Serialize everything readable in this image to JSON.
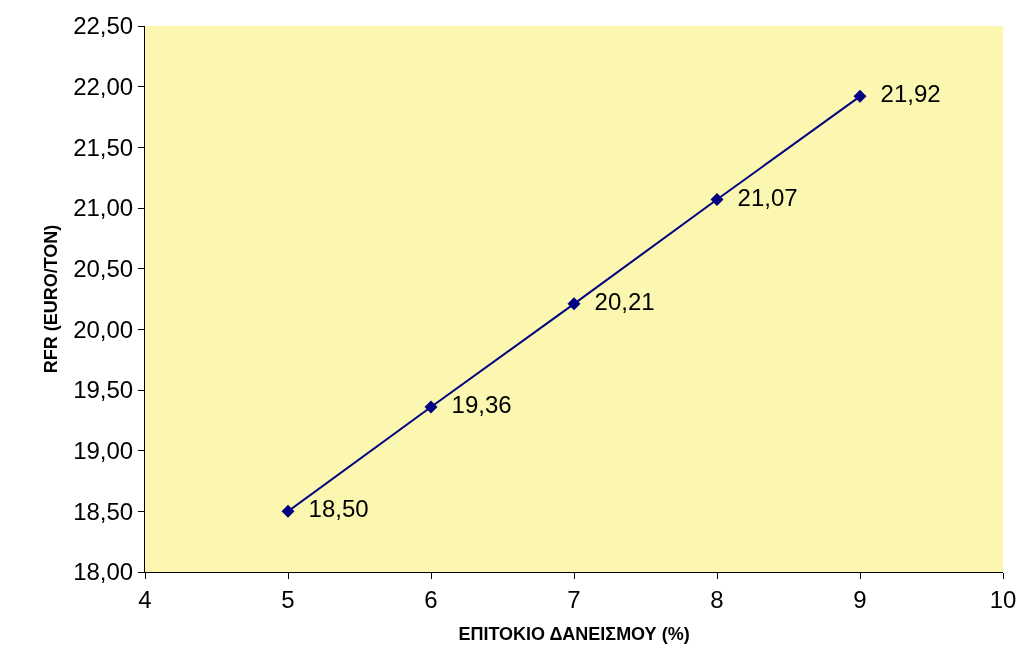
{
  "chart_data": {
    "type": "line",
    "xlabel": "ΕΠΙΤΟΚΙΟ ΔΑΝΕΙΣΜΟΥ (%)",
    "ylabel": "RFR (EURO/TON)",
    "x": [
      5,
      6,
      7,
      8,
      9
    ],
    "series": [
      {
        "color": "#000080",
        "values": [
          18.5,
          19.36,
          20.21,
          21.07,
          21.92
        ],
        "value_labels": [
          "18,50",
          "19,36",
          "20,21",
          "21,07",
          "21,92"
        ]
      }
    ],
    "xlim": [
      4,
      10
    ],
    "xticks": [
      4,
      5,
      6,
      7,
      8,
      9,
      10
    ],
    "ylim": [
      18,
      22.5
    ],
    "yticks": [
      {
        "value": 18,
        "label": "18,00"
      },
      {
        "value": 18.5,
        "label": "18,50"
      },
      {
        "value": 19,
        "label": "19,00"
      },
      {
        "value": 19.5,
        "label": "19,50"
      },
      {
        "value": 20,
        "label": "20,00"
      },
      {
        "value": 20.5,
        "label": "20,50"
      },
      {
        "value": 21,
        "label": "21,00"
      },
      {
        "value": 21.5,
        "label": "21,50"
      },
      {
        "value": 22,
        "label": "22,00"
      },
      {
        "value": 22.5,
        "label": "22,50"
      }
    ],
    "marker": "diamond",
    "line_style": "solid"
  }
}
